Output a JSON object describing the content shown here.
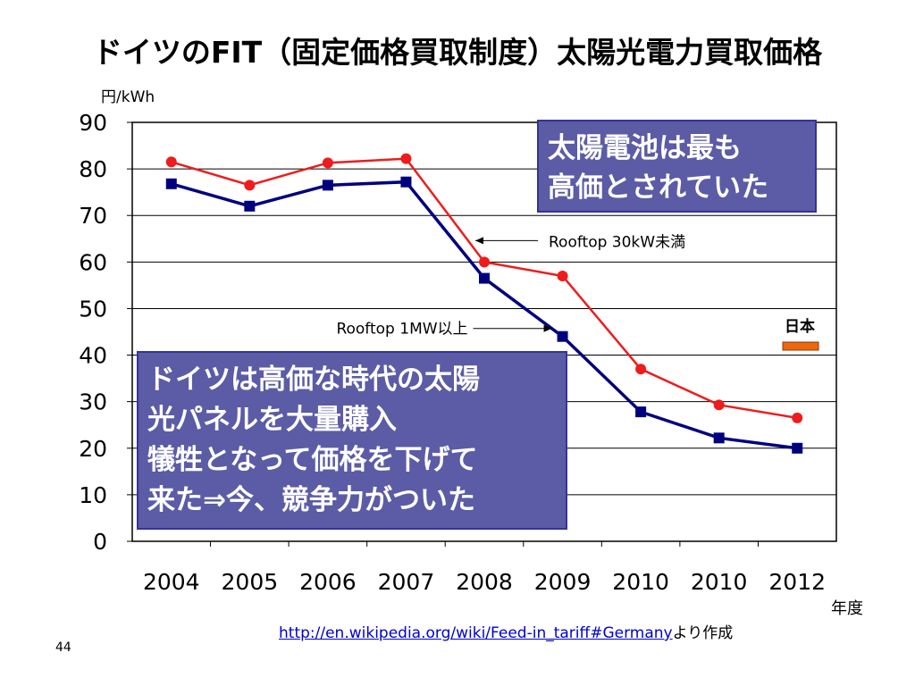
{
  "title": "ドイツのFIT（固定価格買取制度）太陽光電力買取価格",
  "y_unit": "円/kWh",
  "x_unit": "年度",
  "source_link": "http://en.wikipedia.org/wiki/Feed-in_tariff#Germany",
  "source_suffix": "より作成",
  "page_number": "44",
  "callout_top": [
    "太陽電池は最も",
    "高価とされていた"
  ],
  "callout_bottom": [
    "ドイツは高価な時代の太陽",
    "光パネルを大量購入",
    "犠牲となって価格を下げて",
    "来た⇒今、競争力がついた"
  ],
  "colors": {
    "series_small": "#ee1c1c",
    "series_large": "#00007f",
    "callout_fill": "#5b5ba6",
    "japan_bar": "#ee6611"
  },
  "chart_data": {
    "type": "line",
    "title": "ドイツのFIT（固定価格買取制度）太陽光電力買取価格",
    "ylabel": "円/kWh",
    "xlabel": "年度",
    "categories": [
      "2004",
      "2005",
      "2006",
      "2007",
      "2008",
      "2009",
      "2010",
      "2010",
      "2012"
    ],
    "ylim": [
      0,
      90
    ],
    "yticks": [
      0,
      10,
      20,
      30,
      40,
      50,
      60,
      70,
      80,
      90
    ],
    "grid": true,
    "series": [
      {
        "name": "Rooftop 30kW未満",
        "marker": "circle",
        "values": [
          81.5,
          76.5,
          81.3,
          82.2,
          60.0,
          57.0,
          37.0,
          29.3,
          26.5
        ]
      },
      {
        "name": "Rooftop 1MW以上",
        "marker": "square",
        "values": [
          76.8,
          72.0,
          76.5,
          77.2,
          56.5,
          44.0,
          27.8,
          22.2,
          20.0
        ]
      }
    ],
    "annotations": [
      {
        "text": "Rooftop 30kW未満",
        "series": 0,
        "category_index": 4,
        "arrow": "left"
      },
      {
        "text": "Rooftop 1MW以上",
        "series": 1,
        "category_index": 5,
        "arrow": "right"
      },
      {
        "text": "日本",
        "legend_swatch": true
      }
    ]
  }
}
